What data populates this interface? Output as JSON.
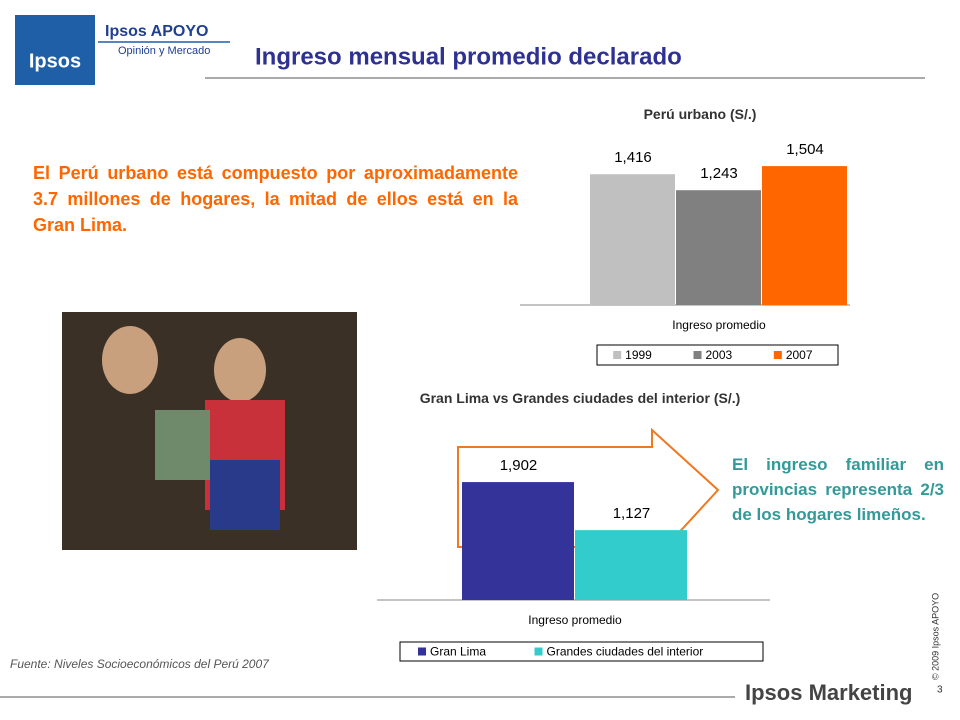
{
  "logo": {
    "brand": "Ipsos",
    "name": "Ipsos APOYO",
    "tagline": "Opinión y Mercado"
  },
  "title": "Ingreso mensual promedio declarado",
  "text_left": "El Perú urbano está compuesto por aproximadamente 3.7 millones de hogares, la mitad de ellos está en la Gran Lima.",
  "text_right": "El ingreso familiar en provincias representa 2/3 de los hogares limeños.",
  "source": "Fuente: Niveles Socioeconómicos del Perú 2007",
  "copyright": "© 2009 Ipsos APOYO",
  "page_number": "3",
  "footer_brand": "Ipsos Marketing",
  "chart_data": [
    {
      "type": "bar",
      "title": "Perú urbano (S/.)",
      "categories": [
        "Ingreso promedio"
      ],
      "series": [
        {
          "name": "1999",
          "color": "#c0c0c0",
          "values": [
            1416
          ],
          "value_labels": [
            "1,416"
          ]
        },
        {
          "name": "2003",
          "color": "#808080",
          "values": [
            1243
          ],
          "value_labels": [
            "1,243"
          ]
        },
        {
          "name": "2007",
          "color": "#ff6600",
          "values": [
            1504
          ],
          "value_labels": [
            "1,504"
          ]
        }
      ],
      "ylim": [
        0,
        1700
      ],
      "legend": "bottom"
    },
    {
      "type": "bar",
      "title": "Gran Lima vs Grandes ciudades del interior (S/.)",
      "categories": [
        "Ingreso promedio"
      ],
      "series": [
        {
          "name": "Gran Lima",
          "color": "#333399",
          "values": [
            1902
          ],
          "value_labels": [
            "1,902"
          ]
        },
        {
          "name": "Grandes ciudades del interior",
          "color": "#33cccc",
          "values": [
            1127
          ],
          "value_labels": [
            "1,127"
          ]
        }
      ],
      "ylim": [
        0,
        2500
      ],
      "legend": "bottom"
    }
  ]
}
